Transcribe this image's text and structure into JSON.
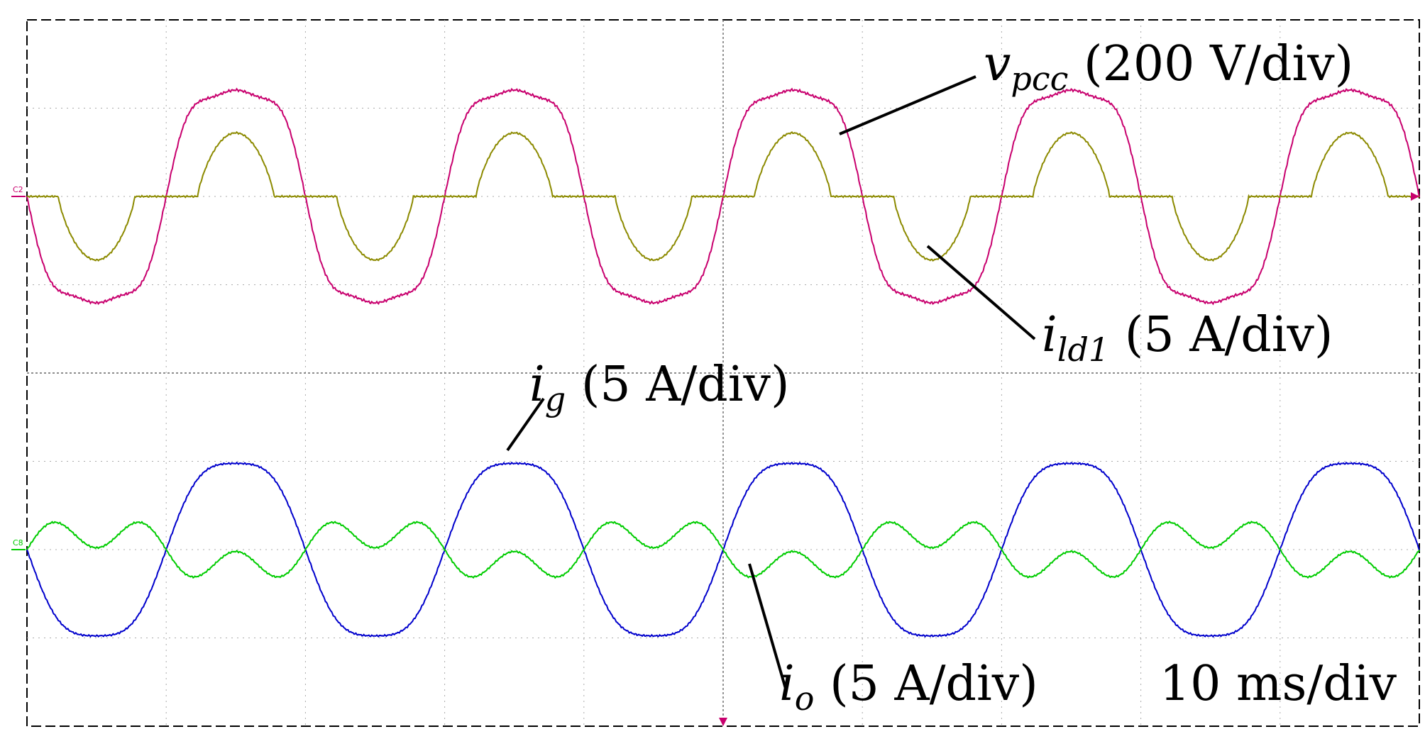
{
  "chart_data": {
    "type": "line",
    "time_scale": "10 ms/div",
    "divisions": {
      "x": 10,
      "y": 8
    },
    "grid": true,
    "channels": [
      {
        "id": "C2",
        "marker": "C2",
        "panel": "top",
        "color": "#c8006e",
        "label": {
          "sym": "v",
          "sub": "pcc",
          "text": " (200 V/div)"
        },
        "zero_div": 2,
        "amplitude_div": 1.55,
        "phase_deg": 180,
        "harmonics": [
          [
            3,
            0.17
          ],
          [
            5,
            0.05
          ]
        ]
      },
      {
        "id": "C1",
        "marker": "",
        "panel": "top",
        "color": "#8c8a00",
        "label": {
          "sym": "i",
          "sub": "ld1",
          "text": " (5 A/div)"
        },
        "zero_div": 2,
        "amplitude_div": 0.72,
        "phase_deg": 180,
        "conduction_pct": 0.55
      },
      {
        "id": "C4",
        "marker": "",
        "panel": "bottom",
        "color": "#0000cc",
        "label": {
          "sym": "i",
          "sub": "g",
          "text": " (5 A/div)"
        },
        "zero_div": 6,
        "amplitude_div": 1.15,
        "phase_deg": 180,
        "harmonics": [
          [
            3,
            0.1
          ]
        ]
      },
      {
        "id": "C8",
        "marker": "C8",
        "panel": "bottom",
        "color": "#00cc00",
        "label": {
          "sym": "i",
          "sub": "o",
          "text": " (5 A/div)"
        },
        "zero_div": 6,
        "amplitude_div": 0.33,
        "phase_deg": 0,
        "harmonics": [
          [
            3,
            0.9
          ]
        ]
      }
    ]
  }
}
